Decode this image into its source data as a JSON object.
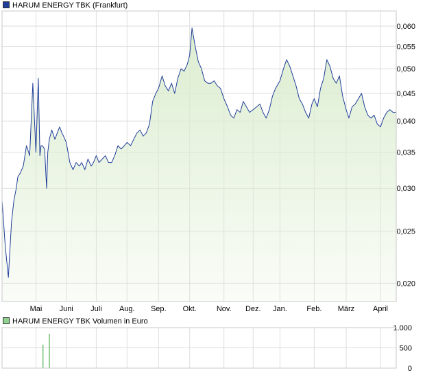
{
  "legend_price": "HARUM ENERGY TBK (Frankfurt)",
  "legend_volume": "HARUM ENERGY TBK Volumen in Euro",
  "colors": {
    "price_line": "#1f3d99",
    "price_fill": "#dcedd0",
    "volume_bar": "#2e9e2e",
    "grid": "#dddddd",
    "frame": "#c8c8c8",
    "legend_price_swatch": "#1f3d99",
    "legend_volume_swatch": "#8fd18f"
  },
  "chart_data": [
    {
      "type": "area",
      "title": "",
      "xlabel": "",
      "ylabel": "",
      "scale": "log",
      "ylim": [
        0.0185,
        0.064
      ],
      "yticks": [
        0.02,
        0.025,
        0.03,
        0.035,
        0.04,
        0.045,
        0.05,
        0.055,
        0.06
      ],
      "ytick_labels": [
        "0,020",
        "0,025",
        "0,030",
        "0,035",
        "0,040",
        "0,045",
        "0,050",
        "0,055",
        "0,060"
      ],
      "xlim": [
        0,
        1
      ],
      "xticks": [
        0.086,
        0.163,
        0.239,
        0.317,
        0.397,
        0.476,
        0.563,
        0.637,
        0.705,
        0.792,
        0.873,
        0.96
      ],
      "xtick_labels": [
        "Mai",
        "Juni",
        "Juli",
        "Aug.",
        "Sep.",
        "Okt.",
        "Nov.",
        "Dez.",
        "Jan.",
        "Feb.",
        "März",
        "April"
      ],
      "grid": true,
      "series": [
        {
          "x": [
            0.0,
            0.008,
            0.016,
            0.024,
            0.03,
            0.036,
            0.04,
            0.046,
            0.054,
            0.062,
            0.07,
            0.078,
            0.086,
            0.092,
            0.096,
            0.099,
            0.102,
            0.108,
            0.113,
            0.116,
            0.12,
            0.126,
            0.134,
            0.14,
            0.146,
            0.152,
            0.156,
            0.163,
            0.172,
            0.18,
            0.188,
            0.196,
            0.202,
            0.21,
            0.218,
            0.226,
            0.232,
            0.239,
            0.246,
            0.254,
            0.262,
            0.27,
            0.278,
            0.286,
            0.294,
            0.302,
            0.31,
            0.317,
            0.326,
            0.334,
            0.342,
            0.35,
            0.358,
            0.366,
            0.374,
            0.382,
            0.39,
            0.397,
            0.406,
            0.414,
            0.422,
            0.43,
            0.438,
            0.446,
            0.454,
            0.462,
            0.47,
            0.476,
            0.482,
            0.49,
            0.498,
            0.506,
            0.514,
            0.522,
            0.53,
            0.538,
            0.546,
            0.554,
            0.563,
            0.572,
            0.58,
            0.588,
            0.596,
            0.604,
            0.612,
            0.62,
            0.628,
            0.637,
            0.646,
            0.654,
            0.662,
            0.67,
            0.678,
            0.686,
            0.694,
            0.705,
            0.714,
            0.722,
            0.73,
            0.738,
            0.746,
            0.754,
            0.762,
            0.77,
            0.778,
            0.786,
            0.792,
            0.8,
            0.808,
            0.816,
            0.824,
            0.832,
            0.84,
            0.848,
            0.856,
            0.864,
            0.873,
            0.88,
            0.888,
            0.896,
            0.904,
            0.912,
            0.92,
            0.928,
            0.936,
            0.944,
            0.952,
            0.96,
            0.968,
            0.976,
            0.984,
            0.992,
            1.0
          ],
          "y": [
            0.0285,
            0.0235,
            0.0205,
            0.026,
            0.0285,
            0.03,
            0.0315,
            0.032,
            0.033,
            0.036,
            0.0345,
            0.047,
            0.035,
            0.048,
            0.0345,
            0.036,
            0.036,
            0.0355,
            0.03,
            0.035,
            0.037,
            0.0385,
            0.037,
            0.038,
            0.039,
            0.038,
            0.0375,
            0.0365,
            0.0335,
            0.0325,
            0.0335,
            0.033,
            0.0335,
            0.0325,
            0.034,
            0.033,
            0.0335,
            0.0345,
            0.0335,
            0.034,
            0.0345,
            0.0335,
            0.0335,
            0.0345,
            0.036,
            0.0355,
            0.036,
            0.0365,
            0.036,
            0.037,
            0.038,
            0.0385,
            0.0375,
            0.038,
            0.0395,
            0.0435,
            0.045,
            0.046,
            0.0485,
            0.0465,
            0.0455,
            0.047,
            0.045,
            0.048,
            0.05,
            0.0495,
            0.051,
            0.053,
            0.0595,
            0.055,
            0.0515,
            0.05,
            0.0475,
            0.047,
            0.047,
            0.0475,
            0.0465,
            0.046,
            0.044,
            0.0425,
            0.041,
            0.0405,
            0.042,
            0.0415,
            0.0435,
            0.0425,
            0.0415,
            0.042,
            0.0425,
            0.043,
            0.0415,
            0.0405,
            0.042,
            0.0445,
            0.046,
            0.0475,
            0.05,
            0.052,
            0.0505,
            0.0485,
            0.0465,
            0.044,
            0.043,
            0.0415,
            0.0405,
            0.043,
            0.044,
            0.0425,
            0.046,
            0.048,
            0.052,
            0.0505,
            0.048,
            0.047,
            0.0485,
            0.0445,
            0.042,
            0.0405,
            0.0425,
            0.043,
            0.044,
            0.045,
            0.0425,
            0.041,
            0.0405,
            0.041,
            0.0395,
            0.039,
            0.0405,
            0.0415,
            0.042,
            0.0415,
            0.0415
          ]
        }
      ]
    },
    {
      "type": "bar",
      "title": "",
      "xlabel": "",
      "ylabel": "",
      "ylim": [
        0,
        1000
      ],
      "yticks": [
        0,
        500,
        1000
      ],
      "ytick_labels": [
        "0",
        "500",
        "1.000"
      ],
      "xlim": [
        0,
        1
      ],
      "grid": true,
      "series": [
        {
          "x": [
            0.104,
            0.12
          ],
          "values": [
            580,
            850
          ]
        }
      ]
    }
  ]
}
